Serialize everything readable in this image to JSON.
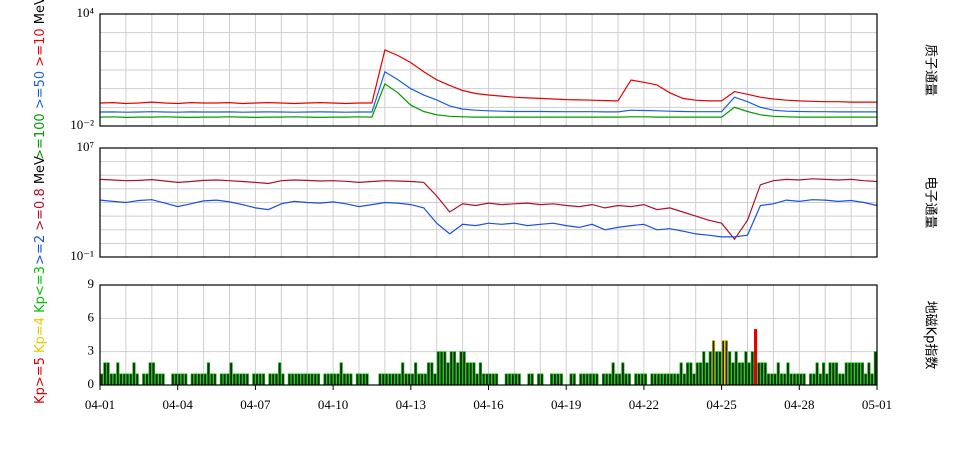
{
  "chart_data": [
    {
      "type": "line",
      "title": "质子通量",
      "unit": "MeV",
      "log_scale": true,
      "grid": true,
      "xlim": [
        0,
        30
      ],
      "xgrid": [
        0,
        1,
        2,
        3,
        4,
        5,
        6,
        7,
        8,
        9,
        10,
        11,
        12,
        13,
        14,
        15,
        16,
        17,
        18,
        19,
        20,
        21,
        22,
        23,
        24,
        25,
        26,
        27,
        28,
        29,
        30
      ],
      "ylim": [
        0.01,
        10000
      ],
      "yticks": [
        {
          "value": 10000,
          "label": "10⁴"
        },
        {
          "value": 0.01,
          "label": "10⁻²"
        }
      ],
      "ygrid": [
        0.1,
        1,
        10,
        100,
        1000
      ],
      "x": [
        0,
        0.5,
        1,
        1.5,
        2,
        2.5,
        3,
        3.5,
        4,
        4.5,
        5,
        5.5,
        6,
        6.5,
        7,
        7.5,
        8,
        8.5,
        9,
        9.5,
        10,
        10.5,
        11,
        11.5,
        12,
        12.5,
        13,
        13.5,
        14,
        14.5,
        15,
        15.5,
        16,
        16.5,
        17,
        17.5,
        18,
        18.5,
        19,
        19.5,
        20,
        20.5,
        21,
        21.5,
        22,
        22.5,
        23,
        23.5,
        24,
        24.5,
        25,
        25.5,
        26,
        26.5,
        27,
        27.5,
        28,
        28.5,
        29,
        29.5,
        30
      ],
      "series": [
        {
          "name": ">=100",
          "color": "#009900",
          "values": [
            0.03,
            0.031,
            0.029,
            0.03,
            0.03,
            0.031,
            0.03,
            0.029,
            0.03,
            0.03,
            0.031,
            0.03,
            0.029,
            0.03,
            0.03,
            0.031,
            0.03,
            0.029,
            0.03,
            0.03,
            0.031,
            0.03,
            1.8,
            0.6,
            0.13,
            0.06,
            0.04,
            0.033,
            0.031,
            0.03,
            0.03,
            0.03,
            0.03,
            0.03,
            0.03,
            0.03,
            0.03,
            0.03,
            0.03,
            0.03,
            0.03,
            0.031,
            0.031,
            0.03,
            0.03,
            0.03,
            0.03,
            0.03,
            0.03,
            0.1,
            0.06,
            0.04,
            0.033,
            0.031,
            0.03,
            0.03,
            0.03,
            0.03,
            0.03,
            0.03,
            0.03
          ]
        },
        {
          "name": ">=50",
          "color": "#1a5fe0",
          "values": [
            0.056,
            0.057,
            0.055,
            0.056,
            0.058,
            0.056,
            0.055,
            0.057,
            0.056,
            0.056,
            0.057,
            0.055,
            0.056,
            0.057,
            0.056,
            0.055,
            0.056,
            0.057,
            0.056,
            0.055,
            0.056,
            0.056,
            8,
            3,
            1,
            0.45,
            0.25,
            0.12,
            0.08,
            0.07,
            0.065,
            0.062,
            0.06,
            0.06,
            0.06,
            0.059,
            0.058,
            0.058,
            0.058,
            0.057,
            0.057,
            0.07,
            0.068,
            0.065,
            0.062,
            0.06,
            0.058,
            0.058,
            0.058,
            0.35,
            0.2,
            0.1,
            0.07,
            0.062,
            0.06,
            0.058,
            0.058,
            0.057,
            0.057,
            0.057,
            0.057
          ]
        },
        {
          "name": ">=10",
          "color": "#e60000",
          "values": [
            0.17,
            0.18,
            0.16,
            0.17,
            0.19,
            0.17,
            0.16,
            0.18,
            0.17,
            0.17,
            0.18,
            0.16,
            0.17,
            0.18,
            0.17,
            0.16,
            0.17,
            0.18,
            0.17,
            0.16,
            0.17,
            0.17,
            118,
            60,
            25,
            8,
            3,
            1.5,
            0.8,
            0.55,
            0.46,
            0.4,
            0.35,
            0.32,
            0.3,
            0.28,
            0.26,
            0.25,
            0.24,
            0.23,
            0.22,
            2.9,
            2.2,
            1.6,
            0.6,
            0.3,
            0.24,
            0.22,
            0.22,
            0.7,
            0.5,
            0.35,
            0.28,
            0.24,
            0.22,
            0.21,
            0.2,
            0.2,
            0.19,
            0.19,
            0.19
          ]
        }
      ]
    },
    {
      "type": "line",
      "title": "电子通量",
      "unit": "MeV",
      "log_scale": true,
      "grid": true,
      "xlim": [
        0,
        30
      ],
      "xgrid": [
        0,
        1,
        2,
        3,
        4,
        5,
        6,
        7,
        8,
        9,
        10,
        11,
        12,
        13,
        14,
        15,
        16,
        17,
        18,
        19,
        20,
        21,
        22,
        23,
        24,
        25,
        26,
        27,
        28,
        29,
        30
      ],
      "ylim": [
        0.1,
        10000000
      ],
      "yticks": [
        {
          "value": 10000000,
          "label": "10⁷"
        },
        {
          "value": 0.1,
          "label": "10⁻¹"
        }
      ],
      "ygrid": [
        1,
        10,
        100,
        1000,
        10000,
        100000,
        1000000
      ],
      "x": [
        0,
        0.5,
        1,
        1.5,
        2,
        2.5,
        3,
        3.5,
        4,
        4.5,
        5,
        5.5,
        6,
        6.5,
        7,
        7.5,
        8,
        8.5,
        9,
        9.5,
        10,
        10.5,
        11,
        11.5,
        12,
        12.5,
        13,
        13.5,
        14,
        14.5,
        15,
        15.5,
        16,
        16.5,
        17,
        17.5,
        18,
        18.5,
        19,
        19.5,
        20,
        20.5,
        21,
        21.5,
        22,
        22.5,
        23,
        23.5,
        24,
        24.5,
        25,
        25.5,
        26,
        26.5,
        27,
        27.5,
        28,
        28.5,
        29,
        29.5,
        30
      ],
      "series": [
        {
          "name": ">=2",
          "color": "#1a4fe0",
          "values": [
            1500,
            1200,
            1000,
            1400,
            1600,
            900,
            500,
            800,
            1300,
            1500,
            1100,
            700,
            400,
            300,
            800,
            1200,
            1000,
            900,
            1100,
            800,
            500,
            700,
            1000,
            900,
            700,
            400,
            30,
            5,
            25,
            20,
            30,
            25,
            30,
            20,
            25,
            30,
            20,
            15,
            25,
            10,
            15,
            20,
            25,
            10,
            12,
            8,
            5,
            4,
            3,
            3,
            4,
            600,
            800,
            1500,
            1200,
            1600,
            1500,
            1200,
            1400,
            1000,
            600
          ]
        },
        {
          "name": ">=0.8",
          "color": "#b0102a",
          "values": [
            50000,
            45000,
            40000,
            42000,
            48000,
            38000,
            30000,
            35000,
            42000,
            45000,
            40000,
            35000,
            30000,
            25000,
            40000,
            45000,
            42000,
            38000,
            40000,
            36000,
            30000,
            35000,
            40000,
            38000,
            35000,
            30000,
            3000,
            200,
            800,
            600,
            900,
            700,
            800,
            900,
            700,
            800,
            600,
            500,
            700,
            400,
            600,
            500,
            700,
            300,
            400,
            200,
            100,
            50,
            30,
            2,
            50,
            20000,
            40000,
            50000,
            45000,
            55000,
            50000,
            45000,
            50000,
            40000,
            35000
          ]
        }
      ]
    },
    {
      "type": "bar",
      "title": "地磁Kp指数",
      "grid": true,
      "xlim": [
        0,
        30
      ],
      "xgrid": [
        0,
        1,
        2,
        3,
        4,
        5,
        6,
        7,
        8,
        9,
        10,
        11,
        12,
        13,
        14,
        15,
        16,
        17,
        18,
        19,
        20,
        21,
        22,
        23,
        24,
        25,
        26,
        27,
        28,
        29,
        30
      ],
      "xticks": [
        {
          "value": 0,
          "label": "04-01"
        },
        {
          "value": 3,
          "label": "04-04"
        },
        {
          "value": 6,
          "label": "04-07"
        },
        {
          "value": 9,
          "label": "04-10"
        },
        {
          "value": 12,
          "label": "04-13"
        },
        {
          "value": 15,
          "label": "04-16"
        },
        {
          "value": 18,
          "label": "04-19"
        },
        {
          "value": 21,
          "label": "04-22"
        },
        {
          "value": 24,
          "label": "04-25"
        },
        {
          "value": 27,
          "label": "04-28"
        },
        {
          "value": 30,
          "label": "05-01"
        }
      ],
      "ylim": [
        0,
        9
      ],
      "yticks": [
        0,
        3,
        6,
        9
      ],
      "legend": [
        {
          "name": "Kp>=5",
          "color": "#e00000",
          "min": 5
        },
        {
          "name": "Kp=4",
          "color": "#e8c800",
          "min": 4
        },
        {
          "name": "Kp<=3",
          "color": "#00c000",
          "min": 0
        }
      ],
      "values": [
        1,
        2,
        2,
        1,
        1,
        2,
        1,
        1,
        1,
        1,
        2,
        1,
        0,
        1,
        1,
        2,
        2,
        1,
        1,
        1,
        0,
        0,
        1,
        1,
        1,
        1,
        1,
        0,
        1,
        1,
        1,
        1,
        1,
        2,
        1,
        1,
        0,
        1,
        1,
        1,
        2,
        1,
        1,
        1,
        1,
        1,
        0,
        1,
        1,
        1,
        1,
        0,
        1,
        1,
        1,
        2,
        1,
        0,
        1,
        1,
        1,
        1,
        1,
        1,
        1,
        1,
        1,
        1,
        0,
        1,
        1,
        1,
        1,
        1,
        2,
        1,
        1,
        1,
        0,
        1,
        1,
        1,
        1,
        0,
        0,
        0,
        1,
        1,
        1,
        1,
        1,
        1,
        1,
        2,
        1,
        1,
        1,
        2,
        1,
        1,
        1,
        2,
        2,
        1,
        3,
        3,
        3,
        2,
        3,
        3,
        2,
        3,
        3,
        2,
        2,
        2,
        1,
        2,
        1,
        1,
        1,
        1,
        1,
        0,
        0,
        1,
        1,
        1,
        1,
        1,
        0,
        0,
        1,
        1,
        0,
        1,
        1,
        0,
        0,
        1,
        1,
        1,
        1,
        0,
        0,
        1,
        1,
        0,
        1,
        1,
        1,
        1,
        1,
        1,
        0,
        1,
        1,
        1,
        2,
        1,
        1,
        2,
        1,
        1,
        0,
        1,
        1,
        1,
        1,
        0,
        1,
        1,
        1,
        1,
        1,
        1,
        1,
        1,
        1,
        2,
        1,
        2,
        2,
        1,
        2,
        2,
        3,
        2,
        3,
        4,
        3,
        3,
        4,
        4,
        3,
        2,
        3,
        2,
        2,
        3,
        2,
        3,
        5,
        2,
        2,
        2,
        1,
        1,
        1,
        2,
        1,
        1,
        2,
        1,
        1,
        1,
        1,
        1,
        0,
        1,
        1,
        2,
        1,
        2,
        1,
        2,
        2,
        2,
        1,
        1,
        2,
        2,
        2,
        2,
        2,
        2,
        1,
        2,
        1,
        3
      ]
    }
  ]
}
